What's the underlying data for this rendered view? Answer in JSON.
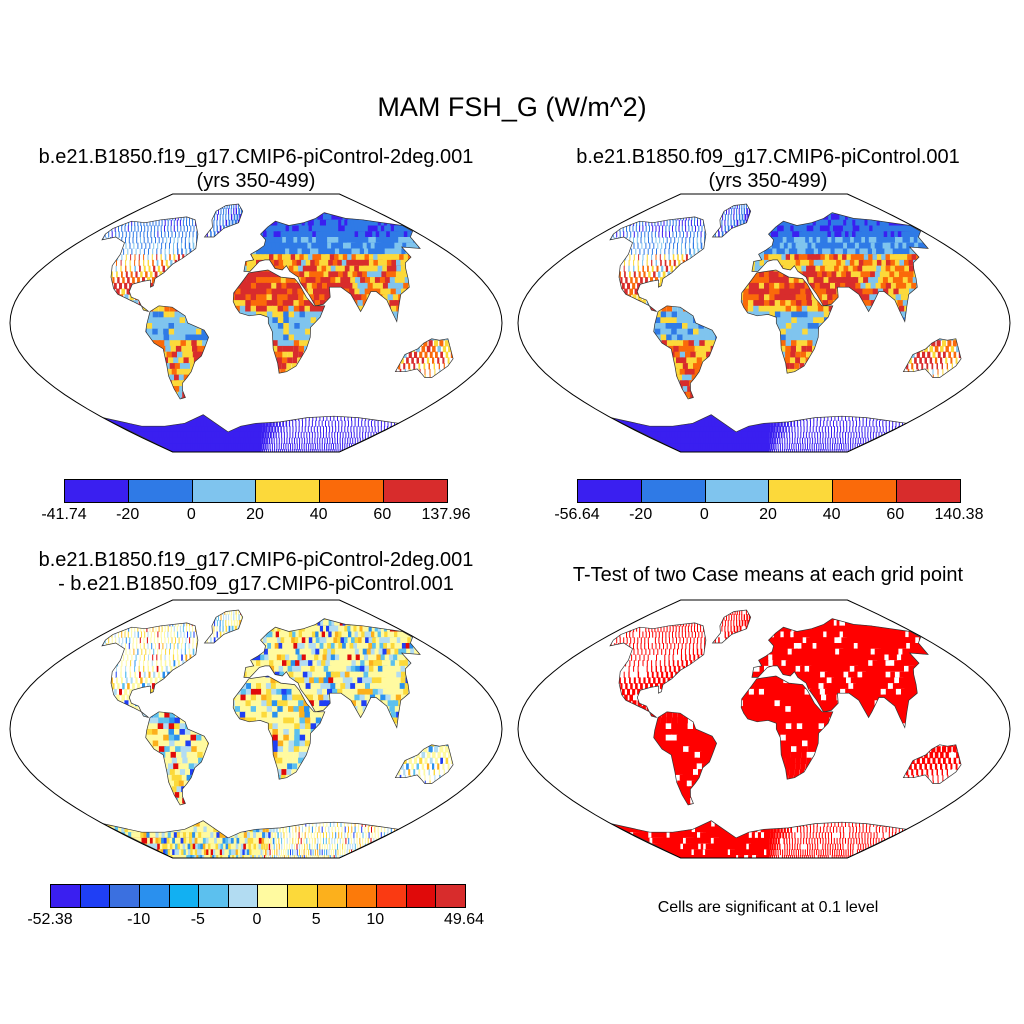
{
  "figure_title": "MAM FSH_G (W/m^2)",
  "panels": {
    "p1": {
      "title_line1": "b.e21.B1850.f19_g17.CMIP6-piControl-2deg.001",
      "title_line2": "(yrs 350-499)",
      "colorbar": {
        "colors": [
          "#3a1ff0",
          "#2f7ae6",
          "#7fc4ee",
          "#fcd93a",
          "#fa6a0a",
          "#d82c2c"
        ],
        "ticks": [
          "-41.74",
          "-20",
          "0",
          "20",
          "40",
          "60",
          "137.96"
        ]
      }
    },
    "p2": {
      "title_line1": "b.e21.B1850.f09_g17.CMIP6-piControl.001",
      "title_line2": "(yrs 350-499)",
      "colorbar": {
        "colors": [
          "#3a1ff0",
          "#2f7ae6",
          "#7fc4ee",
          "#fcd93a",
          "#fa6a0a",
          "#d82c2c"
        ],
        "ticks": [
          "-56.64",
          "-20",
          "0",
          "20",
          "40",
          "60",
          "140.38"
        ]
      }
    },
    "p3": {
      "title_line1": "b.e21.B1850.f19_g17.CMIP6-piControl-2deg.001",
      "title_line2": "- b.e21.B1850.f09_g17.CMIP6-piControl.001",
      "colorbar": {
        "colors": [
          "#3a1ff0",
          "#1f3ff5",
          "#3b70e0",
          "#2a90ee",
          "#12b0f2",
          "#5cc0ee",
          "#b2dcf2",
          "#fffaa0",
          "#fcd93a",
          "#fcb01c",
          "#fc7a0a",
          "#fa3a12",
          "#e00a0a",
          "#d82c2c"
        ],
        "ticks": [
          "-52.38",
          "-10",
          "-5",
          "0",
          "5",
          "10",
          "49.64"
        ]
      }
    },
    "p4": {
      "title_line1": "T-Test of two Case means at each grid point",
      "note": "Cells are significant at 0.1 level"
    }
  }
}
